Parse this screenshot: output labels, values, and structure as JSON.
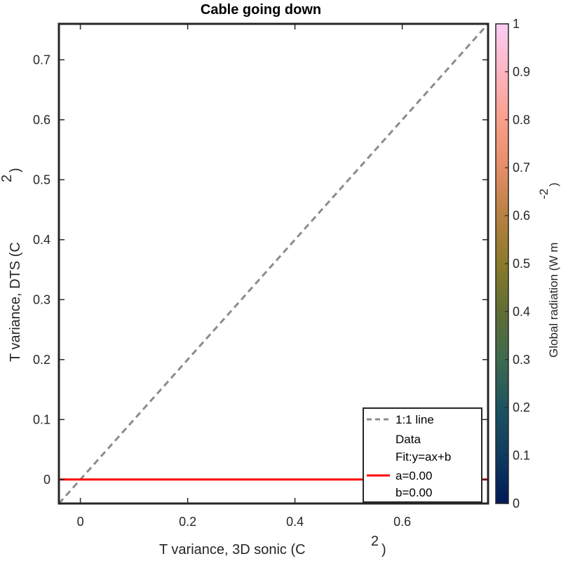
{
  "chart_data": {
    "type": "line",
    "title": "Cable going down",
    "xlabel": "T variance, 3D sonic (C",
    "xlabel_superscript": "2",
    "xlabel_close": ")",
    "ylabel": "T variance, DTS (C",
    "ylabel_superscript": "2",
    "ylabel_close": ")",
    "xlim": [
      -0.04,
      0.76
    ],
    "ylim": [
      -0.04,
      0.76
    ],
    "xticks": [
      0,
      0.2,
      0.4,
      0.6
    ],
    "xtick_labels": [
      "0",
      "0.2",
      "0.4",
      "0.6"
    ],
    "yticks": [
      0,
      0.1,
      0.2,
      0.3,
      0.4,
      0.5,
      0.6,
      0.7
    ],
    "ytick_labels": [
      "0",
      "0.1",
      "0.2",
      "0.3",
      "0.4",
      "0.5",
      "0.6",
      "0.7"
    ],
    "series": [
      {
        "name": "1:1 line",
        "style": "dashed",
        "color": "#8c8c8c",
        "x": [
          -0.04,
          0.76
        ],
        "y": [
          -0.04,
          0.76
        ]
      },
      {
        "name": "Data",
        "style": "markers",
        "color": "",
        "x": [],
        "y": []
      },
      {
        "name": "Fit:y=ax+b",
        "style": "solid",
        "color": "#ff0000",
        "x": [
          -0.04,
          0.76
        ],
        "y": [
          0,
          0
        ]
      }
    ],
    "legend": {
      "position": "bottom-right",
      "entries": [
        "1:1 line",
        "Data",
        "Fit:y=ax+b",
        "a=0.00",
        "b=0.00"
      ]
    },
    "colorbar": {
      "label": "Global radiation (W m",
      "label_superscript": "-2",
      "label_close": ")",
      "range": [
        0,
        1
      ],
      "ticks": [
        0,
        0.1,
        0.2,
        0.3,
        0.4,
        0.5,
        0.6,
        0.7,
        0.8,
        0.9,
        1
      ],
      "tick_labels": [
        "0",
        "0.1",
        "0.2",
        "0.3",
        "0.4",
        "0.5",
        "0.6",
        "0.7",
        "0.8",
        "0.9",
        "1"
      ],
      "colormap": "batlow",
      "colors": [
        "#011959",
        "#0e3c5f",
        "#1d5360",
        "#3e6a4e",
        "#606d34",
        "#8a7a2a",
        "#b88042",
        "#e58e67",
        "#fa9f8b",
        "#fdb4c1",
        "#fbcdf5"
      ]
    },
    "grid": false
  }
}
